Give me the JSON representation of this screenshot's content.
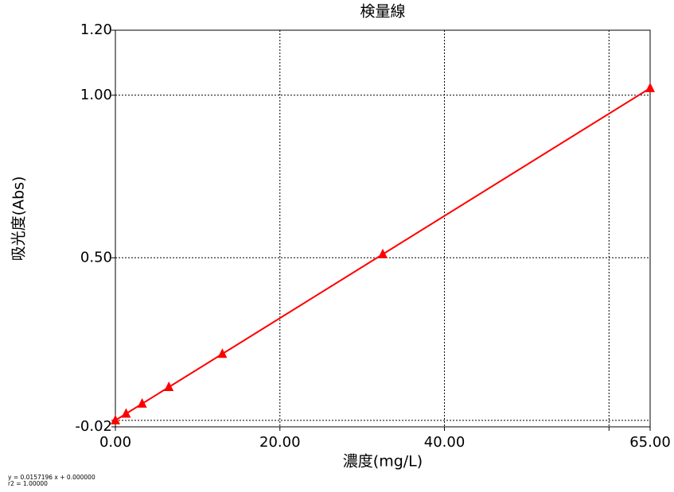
{
  "chart_data": {
    "type": "line",
    "title": "検量線",
    "x_label": "濃度(mg/L)",
    "y_label": "吸光度(Abs)",
    "x": [
      0,
      1.3,
      3.25,
      6.5,
      13,
      32.5,
      65
    ],
    "series": [
      {
        "name": "検量線",
        "color": "#ff0000",
        "values": [
          0,
          0.0204,
          0.0511,
          0.1022,
          0.2044,
          0.5109,
          1.0218
        ]
      }
    ],
    "xlim": [
      0,
      65
    ],
    "xticks": [
      {
        "value": 0,
        "label": "0.00"
      },
      {
        "value": 20,
        "label": "20.00"
      },
      {
        "value": 40,
        "label": "40.00"
      },
      {
        "value": 60,
        "label": null
      },
      {
        "value": 65,
        "label": "65.00"
      }
    ],
    "ylim": [
      -0.02,
      1.2
    ],
    "yticks": [
      -0.02,
      {
        "value": 0,
        "label": null
      },
      {
        "value": 0.5,
        "label": "0.50"
      },
      {
        "value": 1,
        "label": "1.00"
      },
      {
        "value": 1.2,
        "label": "1.20"
      }
    ],
    "grid": true,
    "annotations": [
      "y = 0.0157196 x + 0.000000",
      "r2 = 1.00000"
    ]
  }
}
